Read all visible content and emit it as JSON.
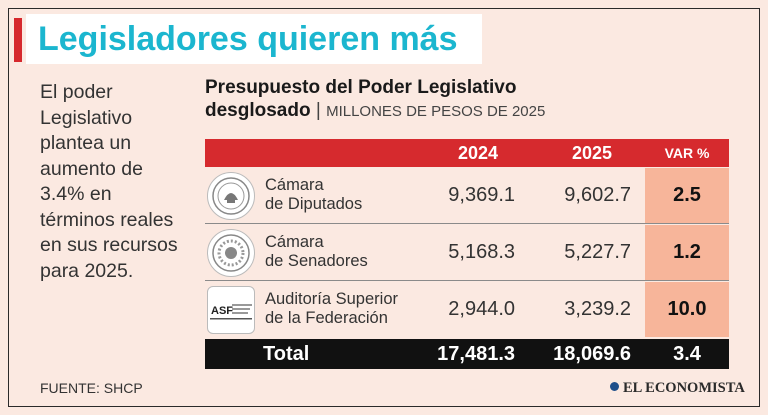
{
  "title": "Legisladores quieren más",
  "intro": "El poder Legislativo plantea un aumento de 3.4% en términos reales en sus recursos para 2025.",
  "table": {
    "title_line1": "Presupuesto del Poder Legislativo",
    "title_line2": "desglosado",
    "separator": "|",
    "units": "MILLONES DE PESOS DE 2025",
    "headers": {
      "y2024": "2024",
      "y2025": "2025",
      "var": "VAR %"
    },
    "rows": [
      {
        "name_line1": "Cámara",
        "name_line2": "de Diputados",
        "y2024": "9,369.1",
        "y2025": "9,602.7",
        "var": "2.5",
        "logo": "diputados-seal-icon"
      },
      {
        "name_line1": "Cámara",
        "name_line2": "de Senadores",
        "y2024": "5,168.3",
        "y2025": "5,227.7",
        "var": "1.2",
        "logo": "senado-seal-icon"
      },
      {
        "name_line1": "Auditoría Superior",
        "name_line2": "de la Federación",
        "y2024": "2,944.0",
        "y2025": "3,239.2",
        "var": "10.0",
        "logo": "asf-logo-icon"
      }
    ],
    "total": {
      "label": "Total",
      "y2024": "17,481.3",
      "y2025": "18,069.6",
      "var": "3.4"
    }
  },
  "source": "FUENTE: SHCP",
  "brand": "EL ECONOMISTA",
  "colors": {
    "accent_red": "#d62a2e",
    "title_cyan": "#1bb6cf",
    "var_fill": "#f7b59a",
    "background": "#fbe9e1"
  }
}
